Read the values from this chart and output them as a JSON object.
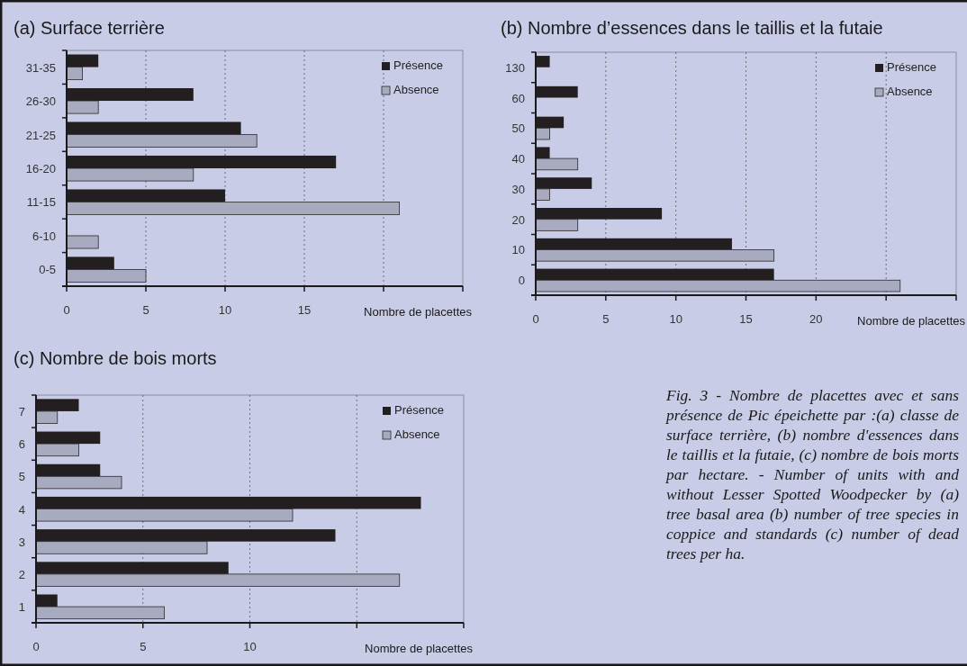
{
  "chart_data": [
    {
      "type": "bar",
      "orientation": "horizontal",
      "title": "(a) Surface terrière",
      "xlabel": "Nombre de placettes",
      "categories": [
        "31-35",
        "26-30",
        "21-25",
        "16-20",
        "11-15",
        "6-10",
        "0-5"
      ],
      "xlim": [
        0,
        25
      ],
      "xticks": [
        0,
        5,
        10,
        15,
        {
          "value": 20,
          "label": null
        },
        {
          "value": 25,
          "label": null
        }
      ],
      "grid": "x",
      "legend": "top right",
      "series": [
        {
          "name": "Présence",
          "color": "#231f20",
          "values": [
            2,
            8,
            11,
            17,
            10,
            0,
            3
          ]
        },
        {
          "name": "Absence",
          "color": "#a8aac0",
          "values": [
            1,
            2,
            12,
            8,
            21,
            2,
            5
          ]
        }
      ]
    },
    {
      "type": "bar",
      "orientation": "horizontal",
      "title": "(b) Nombre d’essences dans le taillis et la futaie",
      "xlabel": "Nombre de placettes",
      "categories": [
        "130",
        "60",
        "50",
        "40",
        "30",
        "20",
        "10",
        "0"
      ],
      "xlim": [
        0,
        30
      ],
      "xticks": [
        0,
        5,
        10,
        15,
        20,
        {
          "value": 25,
          "label": null
        },
        {
          "value": 30,
          "label": null
        }
      ],
      "grid": "x",
      "legend": "top right",
      "series": [
        {
          "name": "Présence",
          "color": "#231f20",
          "values": [
            1,
            3,
            2,
            1,
            4,
            9,
            14,
            17
          ]
        },
        {
          "name": "Absence",
          "color": "#a8aac0",
          "values": [
            0,
            0,
            1,
            3,
            1,
            3,
            17,
            26
          ]
        }
      ]
    },
    {
      "type": "bar",
      "orientation": "horizontal",
      "title": "(c) Nombre de bois morts",
      "xlabel": "Nombre de placettes",
      "categories": [
        "7",
        "6",
        "5",
        "4",
        "3",
        "2",
        "1"
      ],
      "xlim": [
        0,
        20
      ],
      "xticks": [
        0,
        5,
        10,
        {
          "value": 15,
          "label": null
        },
        {
          "value": 20,
          "label": null
        }
      ],
      "grid": "x",
      "legend": "top right",
      "series": [
        {
          "name": "Présence",
          "color": "#231f20",
          "values": [
            2,
            3,
            3,
            18,
            14,
            9,
            1
          ]
        },
        {
          "name": "Absence",
          "color": "#a8aac0",
          "values": [
            1,
            2,
            4,
            12,
            8,
            17,
            6
          ]
        }
      ]
    },
    {
      "type": "other",
      "annotations": [
        "Fig. 3 - Nombre de placettes avec et sans présence de Pic épeichette par :(a) classe de surface terrière, (b) nombre d'essences dans le taillis et la futaie, (c) nombre de bois morts par hectare. - Number of units with and without Lesser Spotted Woodpecker by (a) tree basal area (b) number of tree species in coppice and standards (c) number of dead trees per ha."
      ]
    }
  ]
}
